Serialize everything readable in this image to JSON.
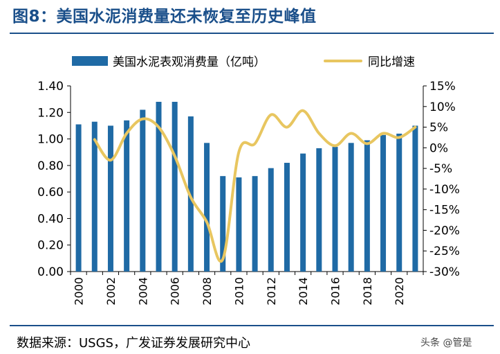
{
  "title": "图8：美国水泥消费量还未恢复至历史峰值",
  "source": "数据来源：USGS，广发证券发展研究中心",
  "watermark": "头条 @管是",
  "colors": {
    "bar": "#1f6aa5",
    "line": "#e8c660",
    "accent": "#1a4f8a"
  },
  "chart_data": {
    "type": "bar+line",
    "title": "图8：美国水泥消费量还未恢复至历史峰值",
    "categories": [
      2000,
      2001,
      2002,
      2003,
      2004,
      2005,
      2006,
      2007,
      2008,
      2009,
      2010,
      2011,
      2012,
      2013,
      2014,
      2015,
      2016,
      2017,
      2018,
      2019,
      2020,
      2021
    ],
    "x_tick_labels": [
      "2000",
      "2002",
      "2004",
      "2006",
      "2008",
      "2010",
      "2012",
      "2014",
      "2016",
      "2018",
      "2020"
    ],
    "series": [
      {
        "name": "美国水泥表观消费量（亿吨）",
        "type": "bar",
        "axis": "left",
        "values": [
          1.11,
          1.13,
          1.1,
          1.14,
          1.22,
          1.28,
          1.28,
          1.17,
          0.97,
          0.72,
          0.71,
          0.72,
          0.78,
          0.82,
          0.89,
          0.93,
          0.94,
          0.97,
          0.99,
          1.03,
          1.04,
          1.1
        ]
      },
      {
        "name": "同比增速",
        "type": "line",
        "axis": "right",
        "values": [
          null,
          2.0,
          -3.0,
          3.5,
          7.0,
          5.0,
          -2.0,
          -12.0,
          -18.0,
          -27.0,
          -1.0,
          1.0,
          8.0,
          5.0,
          9.0,
          3.5,
          0.5,
          3.5,
          1.0,
          3.5,
          2.5,
          5.0
        ]
      }
    ],
    "y_left": {
      "lim": [
        0,
        1.4
      ],
      "ticks": [
        "0.00",
        "0.20",
        "0.40",
        "0.60",
        "0.80",
        "1.00",
        "1.20",
        "1.40"
      ]
    },
    "y_right": {
      "lim": [
        -30,
        15
      ],
      "ticks": [
        "-30%",
        "-25%",
        "-20%",
        "-15%",
        "-10%",
        "-5%",
        "0%",
        "5%",
        "10%",
        "15%"
      ]
    },
    "legend": {
      "position": "top",
      "entries": [
        "美国水泥表观消费量（亿吨）",
        "同比增速"
      ]
    }
  }
}
